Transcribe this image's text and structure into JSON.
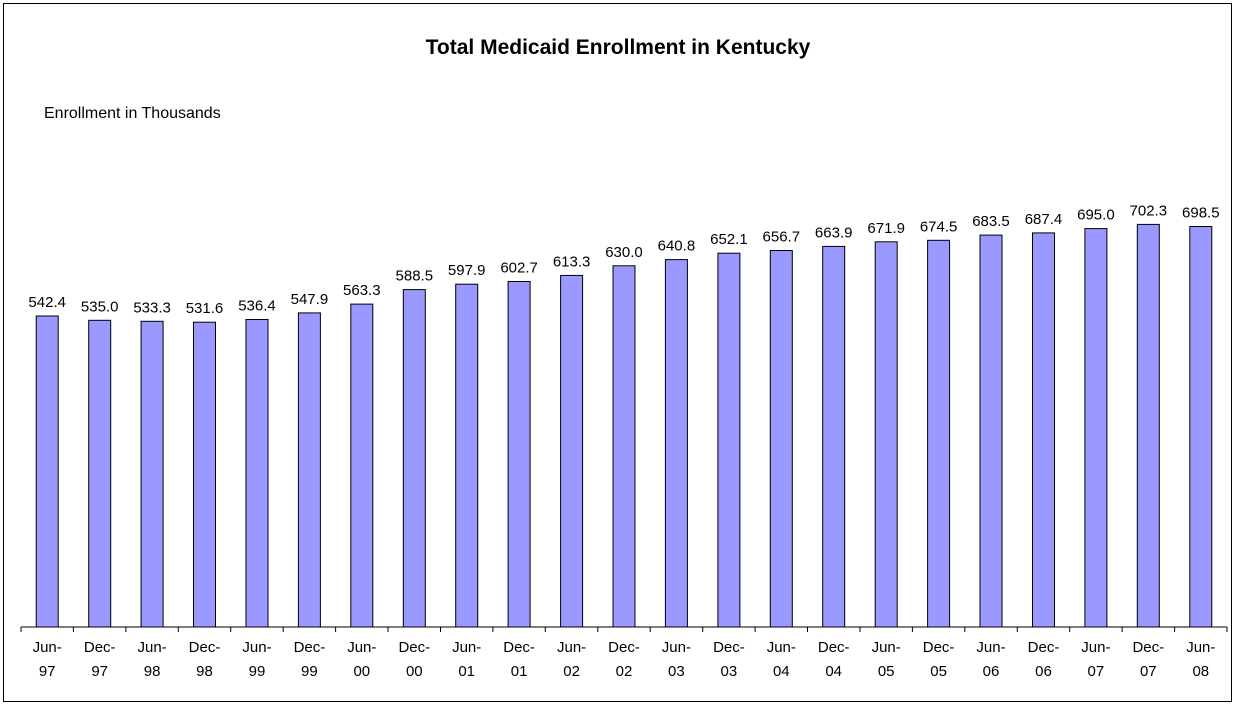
{
  "chart_data": {
    "type": "bar",
    "title": "Total Medicaid Enrollment in Kentucky",
    "ylabel": "Enrollment in Thousands",
    "xlabel": "",
    "categories": [
      [
        "Jun-",
        "97"
      ],
      [
        "Dec-",
        "97"
      ],
      [
        "Jun-",
        "98"
      ],
      [
        "Dec-",
        "98"
      ],
      [
        "Jun-",
        "99"
      ],
      [
        "Dec-",
        "99"
      ],
      [
        "Jun-",
        "00"
      ],
      [
        "Dec-",
        "00"
      ],
      [
        "Jun-",
        "01"
      ],
      [
        "Dec-",
        "01"
      ],
      [
        "Jun-",
        "02"
      ],
      [
        "Dec-",
        "02"
      ],
      [
        "Jun-",
        "03"
      ],
      [
        "Dec-",
        "03"
      ],
      [
        "Jun-",
        "04"
      ],
      [
        "Dec-",
        "04"
      ],
      [
        "Jun-",
        "05"
      ],
      [
        "Dec-",
        "05"
      ],
      [
        "Jun-",
        "06"
      ],
      [
        "Dec-",
        "06"
      ],
      [
        "Jun-",
        "07"
      ],
      [
        "Dec-",
        "07"
      ],
      [
        "Jun-",
        "08"
      ]
    ],
    "values": [
      542.4,
      535.0,
      533.3,
      531.6,
      536.4,
      547.9,
      563.3,
      588.5,
      597.9,
      602.7,
      613.3,
      630.0,
      640.8,
      652.1,
      656.7,
      663.9,
      671.9,
      674.5,
      683.5,
      687.4,
      695.0,
      702.3,
      698.5
    ],
    "value_labels": [
      "542.4",
      "535.0",
      "533.3",
      "531.6",
      "536.4",
      "547.9",
      "563.3",
      "588.5",
      "597.9",
      "602.7",
      "613.3",
      "630.0",
      "640.8",
      "652.1",
      "656.7",
      "663.9",
      "671.9",
      "674.5",
      "683.5",
      "687.4",
      "695.0",
      "702.3",
      "698.5"
    ],
    "ylim": [
      0,
      780
    ],
    "grid": false,
    "legend": "none",
    "colors": {
      "bar_fill": "#9999ff",
      "bar_stroke": "#000000",
      "axis": "#000000",
      "background": "#ffffff"
    }
  }
}
